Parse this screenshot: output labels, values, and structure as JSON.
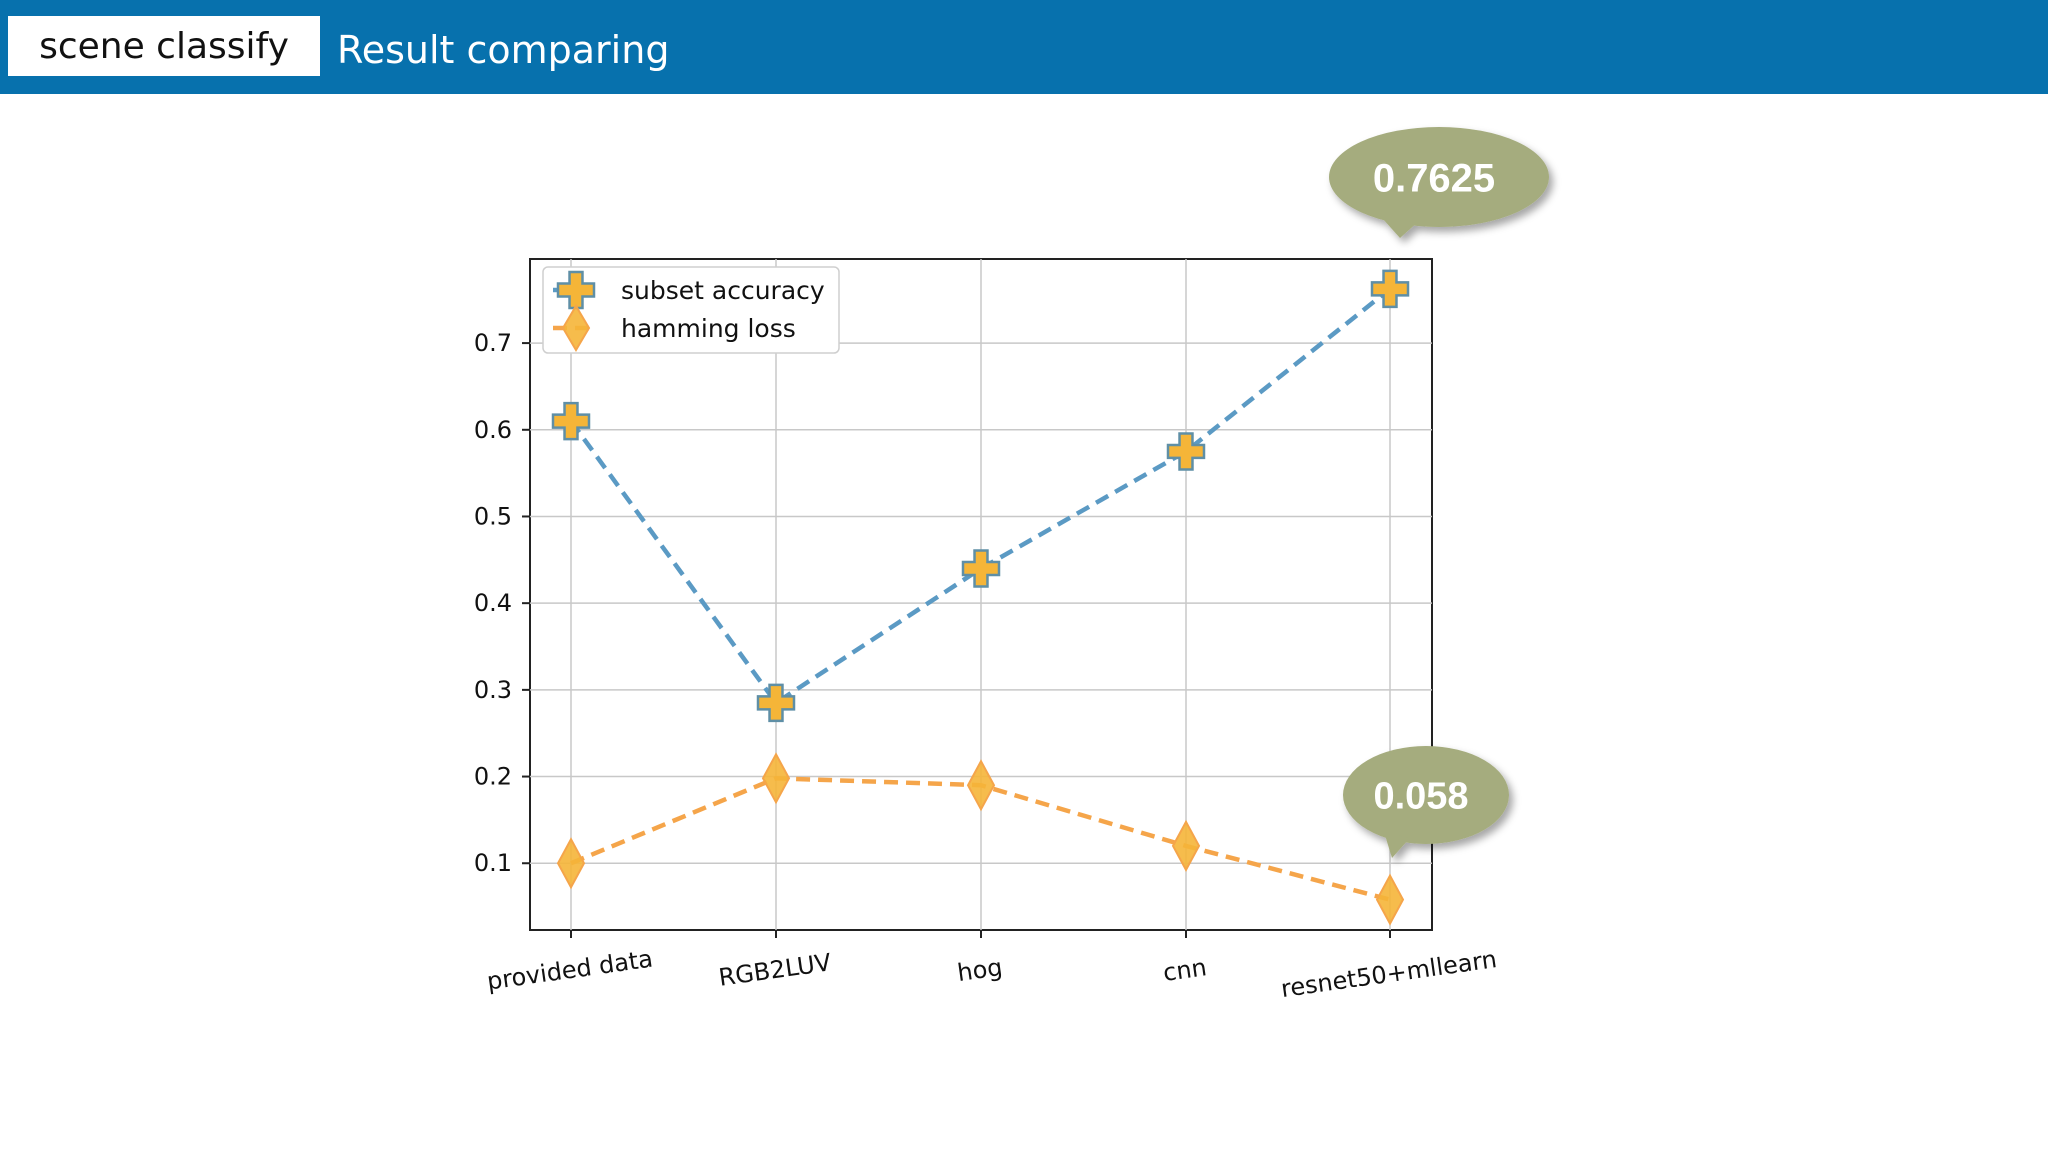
{
  "header": {
    "section": "scene classify",
    "title": "Result comparing"
  },
  "callouts": [
    {
      "label": "0.7625",
      "series": "subset accuracy",
      "category": "resnet50+mllearn"
    },
    {
      "label": "0.058",
      "series": "hamming loss",
      "category": "resnet50+mllearn"
    }
  ],
  "colors": {
    "header": "#0771ad",
    "accuracy_line": "#5b9ac4",
    "loss_line": "#f5a54a",
    "marker_fill": "#f5b538",
    "callout": "#a5ac7e"
  },
  "chart_data": {
    "type": "line",
    "categories": [
      "provided data",
      "RGB2LUV",
      "hog",
      "cnn",
      "resnet50+mllearn"
    ],
    "series": [
      {
        "name": "subset accuracy",
        "marker": "plus",
        "values": [
          0.61,
          0.285,
          0.44,
          0.575,
          0.7625
        ]
      },
      {
        "name": "hamming loss",
        "marker": "diamond",
        "values": [
          0.1,
          0.198,
          0.19,
          0.12,
          0.058
        ]
      }
    ],
    "yticks": [
      "0.1",
      "0.2",
      "0.3",
      "0.4",
      "0.5",
      "0.6",
      "0.7"
    ],
    "ylim": [
      0.023,
      0.797
    ],
    "grid": true,
    "legend": "top-left",
    "xlabel": "",
    "ylabel": "",
    "title": ""
  }
}
